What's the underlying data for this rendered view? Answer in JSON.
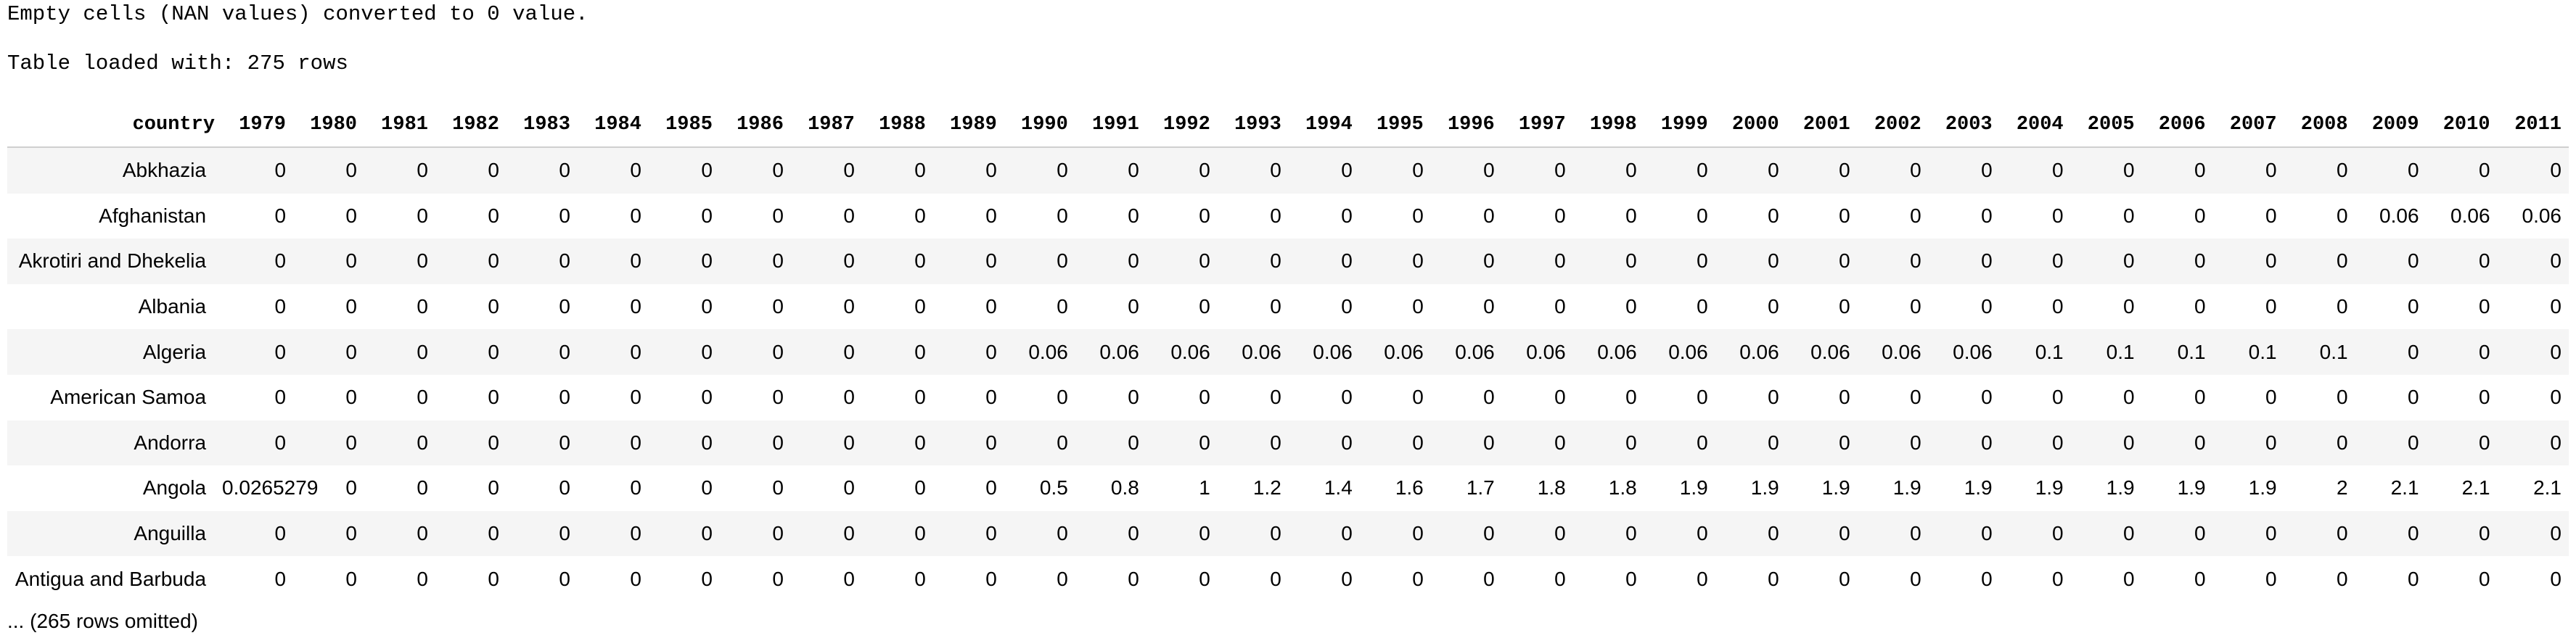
{
  "output": {
    "nan_message": "Empty cells (NAN values) converted to 0 value.",
    "loaded_message": "Table loaded with: 275 rows",
    "omitted_message": "... (265 rows omitted)"
  },
  "table": {
    "columns": [
      "country",
      "1979",
      "1980",
      "1981",
      "1982",
      "1983",
      "1984",
      "1985",
      "1986",
      "1987",
      "1988",
      "1989",
      "1990",
      "1991",
      "1992",
      "1993",
      "1994",
      "1995",
      "1996",
      "1997",
      "1998",
      "1999",
      "2000",
      "2001",
      "2002",
      "2003",
      "2004",
      "2005",
      "2006",
      "2007",
      "2008",
      "2009",
      "2010",
      "2011"
    ],
    "rows": [
      [
        "Abkhazia",
        "0",
        "0",
        "0",
        "0",
        "0",
        "0",
        "0",
        "0",
        "0",
        "0",
        "0",
        "0",
        "0",
        "0",
        "0",
        "0",
        "0",
        "0",
        "0",
        "0",
        "0",
        "0",
        "0",
        "0",
        "0",
        "0",
        "0",
        "0",
        "0",
        "0",
        "0",
        "0",
        "0"
      ],
      [
        "Afghanistan",
        "0",
        "0",
        "0",
        "0",
        "0",
        "0",
        "0",
        "0",
        "0",
        "0",
        "0",
        "0",
        "0",
        "0",
        "0",
        "0",
        "0",
        "0",
        "0",
        "0",
        "0",
        "0",
        "0",
        "0",
        "0",
        "0",
        "0",
        "0",
        "0",
        "0",
        "0.06",
        "0.06",
        "0.06"
      ],
      [
        "Akrotiri and Dhekelia",
        "0",
        "0",
        "0",
        "0",
        "0",
        "0",
        "0",
        "0",
        "0",
        "0",
        "0",
        "0",
        "0",
        "0",
        "0",
        "0",
        "0",
        "0",
        "0",
        "0",
        "0",
        "0",
        "0",
        "0",
        "0",
        "0",
        "0",
        "0",
        "0",
        "0",
        "0",
        "0",
        "0"
      ],
      [
        "Albania",
        "0",
        "0",
        "0",
        "0",
        "0",
        "0",
        "0",
        "0",
        "0",
        "0",
        "0",
        "0",
        "0",
        "0",
        "0",
        "0",
        "0",
        "0",
        "0",
        "0",
        "0",
        "0",
        "0",
        "0",
        "0",
        "0",
        "0",
        "0",
        "0",
        "0",
        "0",
        "0",
        "0"
      ],
      [
        "Algeria",
        "0",
        "0",
        "0",
        "0",
        "0",
        "0",
        "0",
        "0",
        "0",
        "0",
        "0",
        "0.06",
        "0.06",
        "0.06",
        "0.06",
        "0.06",
        "0.06",
        "0.06",
        "0.06",
        "0.06",
        "0.06",
        "0.06",
        "0.06",
        "0.06",
        "0.06",
        "0.1",
        "0.1",
        "0.1",
        "0.1",
        "0.1",
        "0",
        "0",
        "0"
      ],
      [
        "American Samoa",
        "0",
        "0",
        "0",
        "0",
        "0",
        "0",
        "0",
        "0",
        "0",
        "0",
        "0",
        "0",
        "0",
        "0",
        "0",
        "0",
        "0",
        "0",
        "0",
        "0",
        "0",
        "0",
        "0",
        "0",
        "0",
        "0",
        "0",
        "0",
        "0",
        "0",
        "0",
        "0",
        "0"
      ],
      [
        "Andorra",
        "0",
        "0",
        "0",
        "0",
        "0",
        "0",
        "0",
        "0",
        "0",
        "0",
        "0",
        "0",
        "0",
        "0",
        "0",
        "0",
        "0",
        "0",
        "0",
        "0",
        "0",
        "0",
        "0",
        "0",
        "0",
        "0",
        "0",
        "0",
        "0",
        "0",
        "0",
        "0",
        "0"
      ],
      [
        "Angola",
        "0.0265279",
        "0",
        "0",
        "0",
        "0",
        "0",
        "0",
        "0",
        "0",
        "0",
        "0",
        "0.5",
        "0.8",
        "1",
        "1.2",
        "1.4",
        "1.6",
        "1.7",
        "1.8",
        "1.8",
        "1.9",
        "1.9",
        "1.9",
        "1.9",
        "1.9",
        "1.9",
        "1.9",
        "1.9",
        "1.9",
        "2",
        "2.1",
        "2.1",
        "2.1"
      ],
      [
        "Anguilla",
        "0",
        "0",
        "0",
        "0",
        "0",
        "0",
        "0",
        "0",
        "0",
        "0",
        "0",
        "0",
        "0",
        "0",
        "0",
        "0",
        "0",
        "0",
        "0",
        "0",
        "0",
        "0",
        "0",
        "0",
        "0",
        "0",
        "0",
        "0",
        "0",
        "0",
        "0",
        "0",
        "0"
      ],
      [
        "Antigua and Barbuda",
        "0",
        "0",
        "0",
        "0",
        "0",
        "0",
        "0",
        "0",
        "0",
        "0",
        "0",
        "0",
        "0",
        "0",
        "0",
        "0",
        "0",
        "0",
        "0",
        "0",
        "0",
        "0",
        "0",
        "0",
        "0",
        "0",
        "0",
        "0",
        "0",
        "0",
        "0",
        "0",
        "0"
      ]
    ]
  }
}
